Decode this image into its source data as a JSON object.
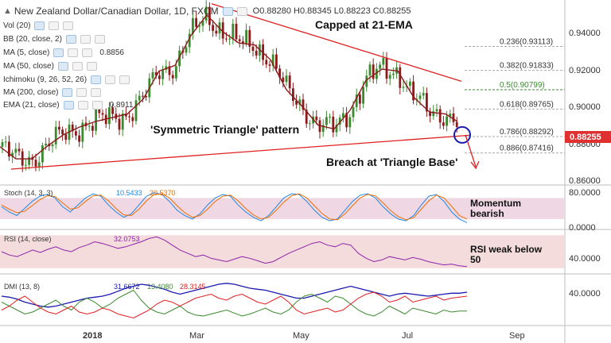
{
  "header": {
    "title": "New Zealand Dollar/Canadian Dollar, 1D, FXCM",
    "ohlc_text": "O0.88280 H0.88345 L0.88223 C0.88255"
  },
  "overlays": [
    {
      "label": "Vol (20)",
      "value": ""
    },
    {
      "label": "BB (20, close, 2)",
      "value": ""
    },
    {
      "label": "MA (5, close)",
      "value": "0.8856"
    },
    {
      "label": "MA (50, close)",
      "value": ""
    },
    {
      "label": "Ichimoku (9, 26, 52, 26)",
      "value": ""
    },
    {
      "label": "MA (200, close)",
      "value": ""
    },
    {
      "label": "EMA (21, close)",
      "value": "0.8911"
    }
  ],
  "colors": {
    "up_candle": "#3a8a2e",
    "down_candle": "#8b1a1a",
    "ema": "#8b1a1a",
    "trendline": "#e02020",
    "fib_line": "#aaaaaa",
    "fib_green": "#3a8a2e",
    "price_badge": "#e03030",
    "stoch_band": "#efd8e4",
    "rsi_band": "#f4dcdc",
    "stoch_k": "#1e88e5",
    "stoch_d": "#ef6c00",
    "rsi": "#8e24aa",
    "dmi_adx": "#1a1ab0",
    "dmi_plus": "#3a8a2e",
    "dmi_minus": "#e02020",
    "circle": "#1a1ab0"
  },
  "chart_data": [
    {
      "type": "candlestick",
      "ylim": [
        0.857,
        0.956
      ],
      "y_ticks": [
        "0.94000",
        "0.92000",
        "0.90000",
        "0.88000",
        "0.86000"
      ],
      "x_ticks": [
        "2018",
        "Mar",
        "May",
        "Jul",
        "Sep"
      ],
      "current_price": "0.88255",
      "series": [
        {
          "name": "EMA (21, close)",
          "x": [
            0,
            20,
            40,
            60,
            80,
            100,
            120,
            140,
            160,
            180,
            200,
            220,
            240,
            260,
            280,
            300,
            320,
            340,
            360,
            380,
            400,
            420,
            440,
            460,
            480,
            500,
            520,
            540,
            560,
            575
          ],
          "values": [
            0.8775,
            0.871,
            0.871,
            0.878,
            0.884,
            0.888,
            0.891,
            0.893,
            0.895,
            0.903,
            0.918,
            0.921,
            0.937,
            0.948,
            0.939,
            0.933,
            0.932,
            0.924,
            0.908,
            0.899,
            0.889,
            0.887,
            0.897,
            0.913,
            0.919,
            0.918,
            0.904,
            0.896,
            0.895,
            0.891
          ]
        }
      ],
      "trendlines": [
        {
          "name": "triangle-top",
          "x": [
            266,
            580
          ],
          "y": [
            0.954,
            0.9125
          ]
        },
        {
          "name": "triangle-base",
          "x": [
            14,
            590
          ],
          "y": [
            0.8655,
            0.8836
          ]
        }
      ],
      "fib_levels": [
        {
          "label": "0.236(0.93113)",
          "value": 0.93113
        },
        {
          "label": "0.382(0.91833)",
          "value": 0.91833
        },
        {
          "label": "0.5(0.90799)",
          "value": 0.90799
        },
        {
          "label": "0.618(0.89765)",
          "value": 0.89765
        },
        {
          "label": "0.786(0.88292)",
          "value": 0.88292
        },
        {
          "label": "0.886(0.87416)",
          "value": 0.87416
        }
      ],
      "annotations": [
        "Capped at 21-EMA",
        "'Symmetric Triangle' pattern",
        "Breach at 'Triangle Base'"
      ]
    },
    {
      "type": "line",
      "title": "Stoch (14, 3, 3)",
      "readouts": [
        "10.5433",
        "20.5370"
      ],
      "ylim": [
        -5,
        110
      ],
      "y_ticks": [
        "80.0000",
        "0.0000"
      ],
      "band": [
        20,
        80
      ],
      "series": [
        {
          "name": "%K",
          "values": [
            55,
            40,
            30,
            50,
            70,
            85,
            90,
            80,
            55,
            40,
            60,
            80,
            92,
            85,
            60,
            40,
            25,
            35,
            60,
            85,
            95,
            90,
            70,
            45,
            30,
            20,
            35,
            60,
            80,
            90,
            85,
            60,
            40,
            25,
            15,
            30,
            55,
            80,
            92,
            90,
            70,
            45,
            25,
            15,
            20,
            45,
            70,
            88,
            92,
            80,
            55,
            35,
            20,
            15,
            30,
            60,
            85,
            90,
            70,
            40,
            20,
            10
          ]
        },
        {
          "name": "%D",
          "values": [
            60,
            48,
            38,
            42,
            58,
            75,
            86,
            84,
            66,
            48,
            52,
            70,
            86,
            88,
            72,
            50,
            32,
            30,
            48,
            72,
            90,
            92,
            80,
            58,
            38,
            25,
            30,
            48,
            70,
            85,
            88,
            72,
            50,
            32,
            20,
            25,
            45,
            68,
            86,
            92,
            80,
            58,
            36,
            20,
            18,
            35,
            58,
            80,
            90,
            86,
            66,
            44,
            27,
            18,
            24,
            48,
            72,
            88,
            80,
            56,
            30,
            20
          ]
        }
      ],
      "annotations": [
        "Momentum",
        "bearish"
      ]
    },
    {
      "type": "line",
      "title": "RSI (14, close)",
      "readouts": [
        "32.0753"
      ],
      "ylim": [
        25,
        75
      ],
      "y_ticks": [
        "40.0000"
      ],
      "band": [
        30,
        70
      ],
      "series": [
        {
          "name": "RSI",
          "values": [
            50,
            46,
            44,
            48,
            52,
            49,
            53,
            56,
            52,
            50,
            55,
            58,
            62,
            60,
            57,
            54,
            56,
            59,
            62,
            66,
            68,
            64,
            58,
            52,
            48,
            44,
            46,
            42,
            40,
            38,
            41,
            44,
            42,
            39,
            36,
            38,
            43,
            48,
            52,
            56,
            60,
            62,
            58,
            56,
            60,
            58,
            48,
            42,
            38,
            40,
            44,
            42,
            40,
            43,
            41,
            38,
            36,
            34,
            35,
            33,
            32
          ]
        }
      ],
      "annotations": [
        "RSI weak below",
        "50"
      ]
    },
    {
      "type": "line",
      "title": "DMI (13, 8)",
      "readouts": [
        "31.6672",
        "13.4080",
        "28.3145"
      ],
      "ylim": [
        0,
        48
      ],
      "y_ticks": [
        "40.0000"
      ],
      "series": [
        {
          "name": "ADX",
          "values": [
            28,
            27,
            25,
            22,
            20,
            18,
            17,
            18,
            20,
            22,
            24,
            26,
            27,
            28,
            30,
            33,
            36,
            38,
            40,
            39,
            37,
            35,
            32,
            30,
            32,
            34,
            36,
            38,
            40,
            41,
            40,
            38,
            36,
            35,
            34,
            32,
            30,
            28,
            26,
            26,
            28,
            30,
            32,
            34,
            36,
            38,
            36,
            34,
            32,
            30,
            28,
            30,
            31,
            30,
            29,
            28,
            29,
            30,
            31,
            31,
            32
          ]
        },
        {
          "name": "+DI",
          "values": [
            22,
            18,
            14,
            10,
            12,
            16,
            20,
            24,
            18,
            14,
            22,
            26,
            22,
            16,
            20,
            26,
            30,
            34,
            24,
            16,
            12,
            10,
            14,
            18,
            12,
            9,
            8,
            10,
            12,
            14,
            11,
            8,
            10,
            13,
            16,
            12,
            10,
            14,
            22,
            28,
            30,
            26,
            22,
            28,
            26,
            20,
            14,
            10,
            8,
            12,
            18,
            14,
            10,
            16,
            14,
            12,
            10,
            14,
            12,
            13,
            13
          ]
        },
        {
          "name": "-DI",
          "values": [
            14,
            18,
            24,
            28,
            22,
            16,
            12,
            10,
            14,
            18,
            12,
            10,
            12,
            16,
            14,
            10,
            8,
            6,
            10,
            14,
            20,
            24,
            22,
            18,
            22,
            26,
            28,
            30,
            26,
            24,
            28,
            30,
            26,
            22,
            20,
            24,
            28,
            22,
            14,
            10,
            12,
            14,
            16,
            12,
            14,
            20,
            26,
            30,
            32,
            28,
            22,
            24,
            28,
            22,
            24,
            26,
            28,
            24,
            26,
            27,
            28
          ]
        }
      ]
    }
  ]
}
